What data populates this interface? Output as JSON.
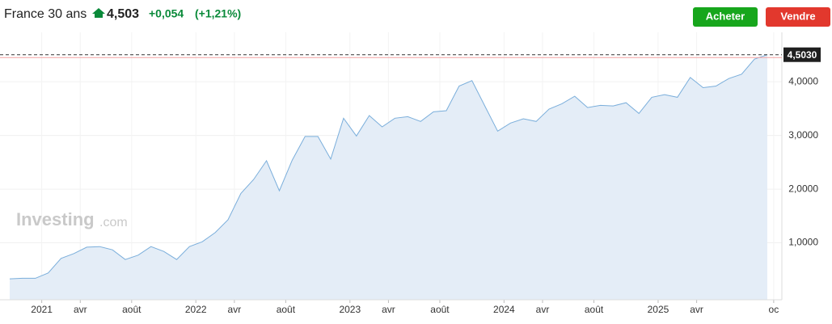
{
  "header": {
    "title": "France 30 ans",
    "price": "4,503",
    "change": "+0,054",
    "change_pct": "(+1,21%)",
    "buttons": [
      "Acheter",
      "Vendre"
    ],
    "watermark": [
      "Investing",
      ".com"
    ]
  },
  "chart_data": {
    "type": "area",
    "x": [
      "2020-10",
      "2020-11",
      "2020-12",
      "2021-01",
      "2021-02",
      "2021-03",
      "2021-04",
      "2021-05",
      "2021-06",
      "2021-07",
      "2021-08",
      "2021-09",
      "2021-10",
      "2021-11",
      "2021-12",
      "2022-01",
      "2022-02",
      "2022-03",
      "2022-04",
      "2022-05",
      "2022-06",
      "2022-07",
      "2022-08",
      "2022-09",
      "2022-10",
      "2022-11",
      "2022-12",
      "2023-01",
      "2023-02",
      "2023-03",
      "2023-04",
      "2023-05",
      "2023-06",
      "2023-07",
      "2023-08",
      "2023-09",
      "2023-10",
      "2023-11",
      "2023-12",
      "2024-01",
      "2024-02",
      "2024-03",
      "2024-04",
      "2024-05",
      "2024-06",
      "2024-07",
      "2024-08",
      "2024-09",
      "2024-10",
      "2024-11",
      "2024-12",
      "2025-01",
      "2025-02",
      "2025-03",
      "2025-04",
      "2025-05",
      "2025-06",
      "2025-07",
      "2025-08",
      "2025-09"
    ],
    "series": [
      {
        "color": "#7aaedb",
        "fill": "#e4edf7",
        "values": [
          0.33,
          0.34,
          0.34,
          0.44,
          0.71,
          0.8,
          0.92,
          0.93,
          0.87,
          0.69,
          0.77,
          0.93,
          0.84,
          0.69,
          0.93,
          1.02,
          1.19,
          1.43,
          1.92,
          2.18,
          2.53,
          1.97,
          2.54,
          2.98,
          2.98,
          2.56,
          3.32,
          2.99,
          3.37,
          3.16,
          3.32,
          3.35,
          3.26,
          3.44,
          3.46,
          3.92,
          4.02,
          3.55,
          3.08,
          3.23,
          3.31,
          3.26,
          3.49,
          3.59,
          3.73,
          3.52,
          3.56,
          3.55,
          3.61,
          3.41,
          3.71,
          3.76,
          3.71,
          4.08,
          3.89,
          3.92,
          4.06,
          4.14,
          4.42,
          4.503
        ]
      }
    ],
    "xticks": [
      {
        "value": "2021-01",
        "label": "2021"
      },
      {
        "value": "2021-04",
        "label": "avr"
      },
      {
        "value": "2021-08",
        "label": "août"
      },
      {
        "value": "2022-01",
        "label": "2022"
      },
      {
        "value": "2022-04",
        "label": "avr"
      },
      {
        "value": "2022-08",
        "label": "août"
      },
      {
        "value": "2023-01",
        "label": "2023"
      },
      {
        "value": "2023-04",
        "label": "avr"
      },
      {
        "value": "2023-08",
        "label": "août"
      },
      {
        "value": "2024-01",
        "label": "2024"
      },
      {
        "value": "2024-04",
        "label": "avr"
      },
      {
        "value": "2024-08",
        "label": "août"
      },
      {
        "value": "2025-01",
        "label": "2025"
      },
      {
        "value": "2025-04",
        "label": "avr"
      },
      {
        "value": "2025-10",
        "label": "oc"
      }
    ],
    "ylim": [
      -0.06,
      4.92
    ],
    "yticks": [
      {
        "value": 1,
        "label": "1,0000"
      },
      {
        "value": 2,
        "label": "2,0000"
      },
      {
        "value": 3,
        "label": "3,0000"
      },
      {
        "value": 4,
        "label": "4,0000"
      }
    ],
    "last_price": {
      "value": 4.503,
      "label": "4,5030"
    },
    "previous_close": 4.449,
    "grid": true
  }
}
